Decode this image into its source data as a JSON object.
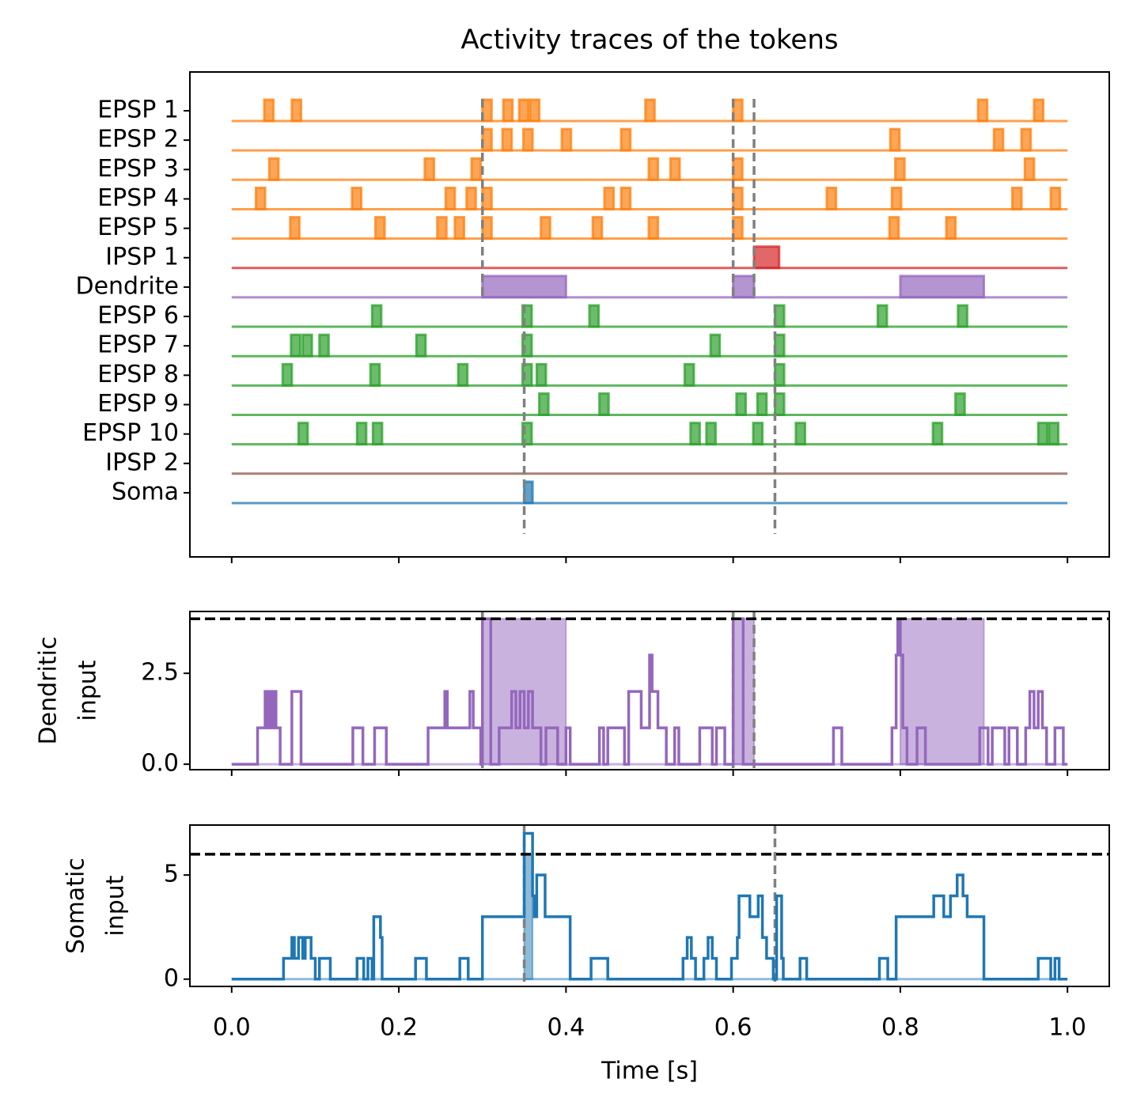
{
  "chart_data": [
    {
      "type": "raster",
      "title": "Activity traces of the tokens",
      "xlim": [
        -0.05,
        1.05
      ],
      "xticks": [
        0,
        0.2,
        0.4,
        0.6,
        0.8,
        1
      ],
      "rows": [
        {
          "name": "EPSP 1",
          "color": "#ff7f0e",
          "events": [
            [
              0.039,
              0.05
            ],
            [
              0.072,
              0.083
            ],
            [
              0.3,
              0.311
            ],
            [
              0.325,
              0.336
            ],
            [
              0.344,
              0.355
            ],
            [
              0.357,
              0.368
            ],
            [
              0.495,
              0.506
            ],
            [
              0.6,
              0.611
            ],
            [
              0.893,
              0.904
            ],
            [
              0.96,
              0.971
            ]
          ]
        },
        {
          "name": "EPSP 2",
          "color": "#ff7f0e",
          "events": [
            [
              0.3,
              0.311
            ],
            [
              0.324,
              0.335
            ],
            [
              0.349,
              0.36
            ],
            [
              0.395,
              0.406
            ],
            [
              0.466,
              0.477
            ],
            [
              0.788,
              0.799
            ],
            [
              0.912,
              0.923
            ],
            [
              0.945,
              0.956
            ]
          ]
        },
        {
          "name": "EPSP 3",
          "color": "#ff7f0e",
          "events": [
            [
              0.045,
              0.056
            ],
            [
              0.231,
              0.242
            ],
            [
              0.287,
              0.298
            ],
            [
              0.499,
              0.51
            ],
            [
              0.525,
              0.536
            ],
            [
              0.6,
              0.611
            ],
            [
              0.794,
              0.805
            ],
            [
              0.949,
              0.96
            ]
          ]
        },
        {
          "name": "EPSP 4",
          "color": "#ff7f0e",
          "events": [
            [
              0.029,
              0.04
            ],
            [
              0.144,
              0.155
            ],
            [
              0.256,
              0.267
            ],
            [
              0.281,
              0.292
            ],
            [
              0.3,
              0.311
            ],
            [
              0.446,
              0.457
            ],
            [
              0.466,
              0.477
            ],
            [
              0.6,
              0.611
            ],
            [
              0.712,
              0.723
            ],
            [
              0.79,
              0.801
            ],
            [
              0.934,
              0.945
            ],
            [
              0.98,
              0.991
            ]
          ]
        },
        {
          "name": "EPSP 5",
          "color": "#ff7f0e",
          "events": [
            [
              0.07,
              0.081
            ],
            [
              0.172,
              0.183
            ],
            [
              0.246,
              0.257
            ],
            [
              0.267,
              0.278
            ],
            [
              0.3,
              0.311
            ],
            [
              0.37,
              0.381
            ],
            [
              0.432,
              0.443
            ],
            [
              0.499,
              0.51
            ],
            [
              0.6,
              0.611
            ],
            [
              0.787,
              0.798
            ],
            [
              0.855,
              0.866
            ]
          ]
        },
        {
          "name": "IPSP 1",
          "color": "#d62728",
          "events": [
            [
              0.625,
              0.655
            ]
          ]
        },
        {
          "name": "Dendrite",
          "color": "#9467bd",
          "events": [
            [
              0.3,
              0.4
            ],
            [
              0.6,
              0.625
            ],
            [
              0.8,
              0.9
            ]
          ]
        },
        {
          "name": "EPSP 6",
          "color": "#2ca02c",
          "events": [
            [
              0.168,
              0.179
            ],
            [
              0.348,
              0.359
            ],
            [
              0.428,
              0.439
            ],
            [
              0.65,
              0.661
            ],
            [
              0.773,
              0.784
            ],
            [
              0.869,
              0.88
            ]
          ]
        },
        {
          "name": "EPSP 7",
          "color": "#2ca02c",
          "events": [
            [
              0.071,
              0.082
            ],
            [
              0.085,
              0.096
            ],
            [
              0.105,
              0.116
            ],
            [
              0.221,
              0.232
            ],
            [
              0.348,
              0.359
            ],
            [
              0.573,
              0.584
            ],
            [
              0.65,
              0.661
            ]
          ]
        },
        {
          "name": "EPSP 8",
          "color": "#2ca02c",
          "events": [
            [
              0.061,
              0.072
            ],
            [
              0.166,
              0.177
            ],
            [
              0.271,
              0.282
            ],
            [
              0.348,
              0.359
            ],
            [
              0.365,
              0.376
            ],
            [
              0.542,
              0.553
            ],
            [
              0.65,
              0.661
            ]
          ]
        },
        {
          "name": "EPSP 9",
          "color": "#2ca02c",
          "events": [
            [
              0.368,
              0.379
            ],
            [
              0.44,
              0.451
            ],
            [
              0.604,
              0.615
            ],
            [
              0.629,
              0.64
            ],
            [
              0.65,
              0.661
            ],
            [
              0.866,
              0.877
            ]
          ]
        },
        {
          "name": "EPSP 10",
          "color": "#2ca02c",
          "events": [
            [
              0.08,
              0.091
            ],
            [
              0.15,
              0.161
            ],
            [
              0.169,
              0.18
            ],
            [
              0.348,
              0.359
            ],
            [
              0.549,
              0.56
            ],
            [
              0.568,
              0.579
            ],
            [
              0.624,
              0.635
            ],
            [
              0.675,
              0.686
            ],
            [
              0.839,
              0.85
            ],
            [
              0.965,
              0.976
            ],
            [
              0.978,
              0.989
            ]
          ]
        },
        {
          "name": "IPSP 2",
          "color": "#8c564b",
          "events": []
        },
        {
          "name": "Soma",
          "color": "#1f77b4",
          "events": [
            [
              0.35,
              0.36
            ]
          ]
        }
      ],
      "dendritic_vlines": [
        0.3,
        0.6,
        0.625
      ],
      "somatic_vlines": [
        0.35,
        0.65
      ]
    },
    {
      "type": "line",
      "ylabel": [
        "Dendritic",
        "input"
      ],
      "color": "#9467bd",
      "xlim": [
        -0.05,
        1.05
      ],
      "xticks": [
        0,
        0.2,
        0.4,
        0.6,
        0.8,
        1
      ],
      "ylim": [
        -0.15,
        4.2
      ],
      "yticks": [
        {
          "value": 0,
          "label": "0.0"
        },
        2.5
      ],
      "threshold": 4,
      "shaded": [
        [
          0.3,
          0.4
        ],
        [
          0.6,
          0.625
        ],
        [
          0.8,
          0.9
        ]
      ],
      "vlines": [
        0.3,
        0.6,
        0.625
      ],
      "x": [
        0,
        0.031,
        0.04,
        0.043,
        0.045,
        0.048,
        0.05,
        0.053,
        0.058,
        0.072,
        0.083,
        0.145,
        0.157,
        0.171,
        0.185,
        0.235,
        0.255,
        0.258,
        0.285,
        0.289,
        0.298,
        0.3,
        0.31,
        0.32,
        0.335,
        0.34,
        0.345,
        0.35,
        0.355,
        0.36,
        0.37,
        0.376,
        0.39,
        0.4,
        0.405,
        0.44,
        0.445,
        0.45,
        0.47,
        0.475,
        0.49,
        0.5,
        0.503,
        0.51,
        0.52,
        0.53,
        0.535,
        0.56,
        0.575,
        0.58,
        0.59,
        0.6,
        0.612,
        0.72,
        0.73,
        0.79,
        0.795,
        0.797,
        0.8,
        0.803,
        0.808,
        0.82,
        0.83,
        0.895,
        0.905,
        0.91,
        0.925,
        0.93,
        0.94,
        0.95,
        0.955,
        0.96,
        0.965,
        0.97,
        0.975,
        0.985,
        0.995,
        1
      ],
      "values": [
        0,
        1,
        2,
        1,
        2,
        1,
        2,
        1,
        0,
        2,
        0,
        1,
        0,
        1,
        0,
        1,
        2,
        1,
        2,
        1,
        0,
        4,
        0,
        1,
        2,
        1,
        2,
        1,
        2,
        1,
        0,
        1,
        0,
        1,
        0,
        1,
        0,
        1,
        0,
        2,
        1,
        3,
        2,
        1,
        0,
        1,
        0,
        1,
        0,
        1,
        0,
        4,
        0,
        1,
        0,
        1,
        3,
        4,
        3,
        1,
        0,
        1,
        0,
        1,
        0,
        1,
        0,
        1,
        0,
        1,
        2,
        1,
        2,
        1,
        0,
        1,
        0,
        0
      ]
    },
    {
      "type": "line",
      "ylabel": [
        "Somatic",
        "input"
      ],
      "xlabel": "Time [s]",
      "color": "#1f77b4",
      "xlim": [
        -0.05,
        1.05
      ],
      "xticks": [
        {
          "value": 0,
          "label": "0.0"
        },
        0.2,
        0.4,
        0.6,
        0.8,
        {
          "value": 1,
          "label": "1.0"
        }
      ],
      "ylim": [
        -0.35,
        7.4
      ],
      "yticks": [
        0,
        5
      ],
      "threshold": 6,
      "shaded": [
        [
          0.35,
          0.36
        ]
      ],
      "vlines": [
        0.35,
        0.65
      ],
      "x": [
        0,
        0.062,
        0.072,
        0.075,
        0.08,
        0.085,
        0.088,
        0.095,
        0.1,
        0.105,
        0.118,
        0.15,
        0.158,
        0.163,
        0.168,
        0.17,
        0.178,
        0.18,
        0.22,
        0.233,
        0.273,
        0.283,
        0.3,
        0.35,
        0.36,
        0.362,
        0.365,
        0.375,
        0.4,
        0.405,
        0.43,
        0.45,
        0.54,
        0.545,
        0.55,
        0.555,
        0.565,
        0.57,
        0.575,
        0.58,
        0.598,
        0.605,
        0.607,
        0.62,
        0.63,
        0.635,
        0.64,
        0.648,
        0.652,
        0.658,
        0.66,
        0.68,
        0.688,
        0.775,
        0.785,
        0.795,
        0.84,
        0.852,
        0.86,
        0.868,
        0.875,
        0.88,
        0.9,
        0.965,
        0.98,
        0.985,
        0.99,
        1
      ],
      "values": [
        0,
        1,
        2,
        1,
        2,
        1,
        2,
        1,
        0,
        1,
        0,
        1,
        0,
        1,
        0,
        3,
        2,
        0,
        1,
        0,
        1,
        0,
        3,
        7,
        4,
        3,
        5,
        3,
        3,
        0,
        1,
        0,
        1,
        2,
        1,
        0,
        1,
        2,
        1,
        0,
        1,
        2,
        4,
        3,
        4,
        2,
        1,
        0,
        4,
        1,
        0,
        1,
        0,
        1,
        0,
        3,
        4,
        3,
        4,
        5,
        4,
        3,
        0,
        1,
        0,
        1,
        0,
        0
      ]
    }
  ]
}
